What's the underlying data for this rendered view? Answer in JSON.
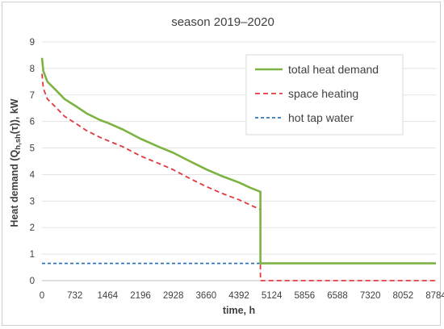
{
  "chart_data": {
    "type": "line",
    "title": "season 2019–2020",
    "xlabel": "time, h",
    "ylabel_parts": [
      "Heat demand (Q",
      "h,sh",
      "(τ)), kW"
    ],
    "xlim": [
      0,
      8784
    ],
    "ylim": [
      0,
      9
    ],
    "x_ticks": [
      0,
      732,
      1464,
      2196,
      2928,
      3660,
      4392,
      5124,
      5856,
      6588,
      7320,
      8052,
      8784
    ],
    "y_ticks": [
      0,
      1,
      2,
      3,
      4,
      5,
      6,
      7,
      8,
      9
    ],
    "grid": "horizontal",
    "legend_position": "top-right",
    "series": [
      {
        "name": "total heat demand",
        "color": "#7cb342",
        "style": "solid",
        "x": [
          0,
          30,
          120,
          300,
          500,
          732,
          1000,
          1300,
          1464,
          1800,
          2196,
          2600,
          2928,
          3300,
          3660,
          4000,
          4392,
          4650,
          4870,
          4870,
          4900,
          5124,
          5856,
          6588,
          7320,
          8052,
          8784
        ],
        "y": [
          8.4,
          7.9,
          7.5,
          7.2,
          6.85,
          6.6,
          6.3,
          6.05,
          5.95,
          5.7,
          5.35,
          5.05,
          4.82,
          4.5,
          4.2,
          3.95,
          3.7,
          3.5,
          3.35,
          0.65,
          0.65,
          0.65,
          0.65,
          0.65,
          0.65,
          0.65,
          0.65
        ]
      },
      {
        "name": "space heating",
        "color": "#e0393e",
        "style": "dashed",
        "x": [
          0,
          30,
          120,
          300,
          500,
          732,
          1000,
          1300,
          1464,
          1800,
          2196,
          2600,
          2928,
          3300,
          3660,
          4000,
          4392,
          4650,
          4870,
          4870,
          4900,
          5124,
          5856,
          6588,
          7320,
          8052,
          8784
        ],
        "y": [
          7.8,
          7.25,
          6.85,
          6.55,
          6.2,
          5.95,
          5.65,
          5.4,
          5.28,
          5.05,
          4.7,
          4.42,
          4.18,
          3.85,
          3.55,
          3.3,
          3.05,
          2.85,
          2.68,
          0,
          0,
          0,
          0,
          0,
          0,
          0,
          0
        ]
      },
      {
        "name": "hot tap water",
        "color": "#2e75b6",
        "style": "dashed",
        "x": [
          0,
          8784
        ],
        "y": [
          0.65,
          0.65
        ]
      }
    ]
  }
}
